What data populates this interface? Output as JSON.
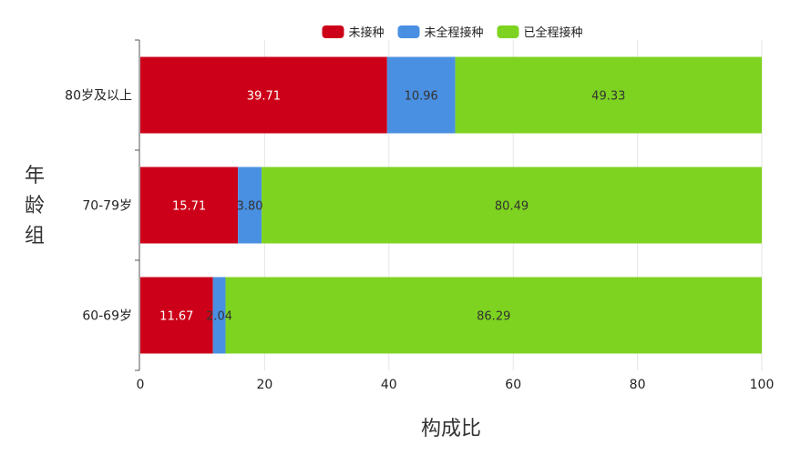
{
  "chart_data": {
    "type": "bar",
    "orientation": "horizontal",
    "stacked": true,
    "title": "",
    "xlabel": "构成比",
    "ylabel": "年龄组",
    "xlim": [
      0,
      100
    ],
    "xticks": [
      0,
      20,
      40,
      60,
      80,
      100
    ],
    "grid": true,
    "legend_position": "top",
    "categories": [
      "80岁及以上",
      "70-79岁",
      "60-69岁"
    ],
    "series": [
      {
        "name": "未接种",
        "color": "#cc0018",
        "label_color": "#ffffff",
        "values": [
          39.71,
          15.71,
          11.67
        ]
      },
      {
        "name": "未全程接种",
        "color": "#4a90e2",
        "label_color": "#333333",
        "values": [
          10.96,
          3.8,
          2.04
        ]
      },
      {
        "name": "已全程接种",
        "color": "#7ed321",
        "label_color": "#333333",
        "values": [
          49.33,
          80.49,
          86.29
        ]
      }
    ]
  }
}
